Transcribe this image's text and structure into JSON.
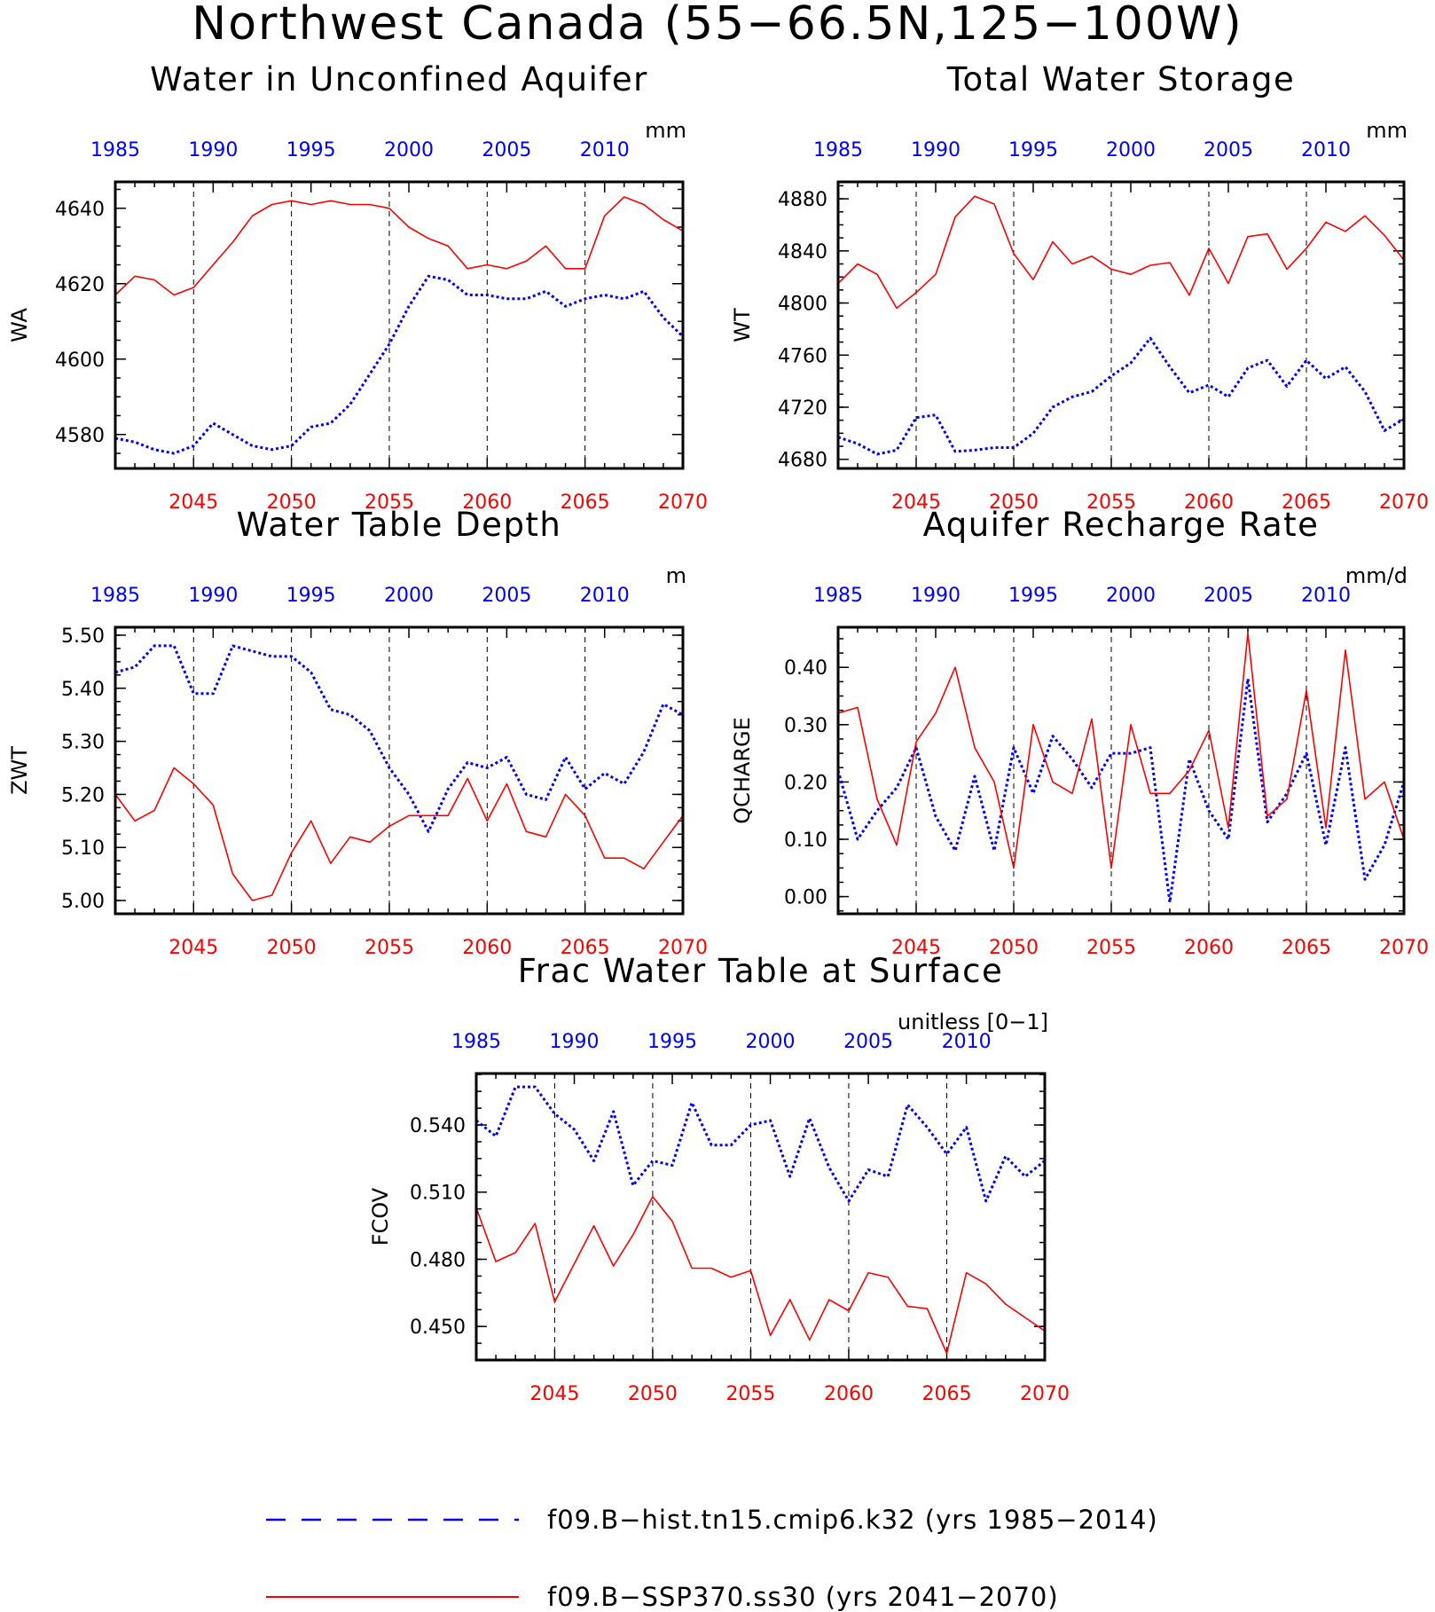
{
  "title": "Northwest Canada (55−66.5N,125−100W)",
  "colors": {
    "hist": "#0000ff",
    "ssp": "#ff0000",
    "axis": "#000000"
  },
  "legend": {
    "items": [
      {
        "label": "f09.B−hist.tn15.cmip6.k32 (yrs 1985−2014)",
        "color": "#0000ff",
        "style": "dashed"
      },
      {
        "label": "f09.B−SSP370.ss30 (yrs 2041−2070)",
        "color": "#ff0000",
        "style": "solid"
      }
    ]
  },
  "chart_data": [
    {
      "type": "line",
      "title": "Water in Unconfined Aquifer",
      "ylabel": "WA",
      "units": "mm",
      "ylim": [
        4571,
        4647
      ],
      "yticks": [
        4580,
        4600,
        4620,
        4640
      ],
      "ytick_labels": [
        "4580",
        "4600",
        "4620",
        "4640"
      ],
      "x_bottom_range": [
        2041,
        2070
      ],
      "x_bottom_ticks": [
        2045,
        2050,
        2055,
        2060,
        2065,
        2070
      ],
      "x_top_range": [
        1985,
        2014
      ],
      "x_top_ticks": [
        1985,
        1990,
        1995,
        2000,
        2005,
        2010
      ],
      "vlines": [
        2045,
        2050,
        2055,
        2060,
        2065
      ],
      "series": [
        {
          "name": "f09.B−hist.tn15.cmip6.k32 (yrs 1985−2014)",
          "axis": "top",
          "x": [
            1985,
            1986,
            1987,
            1988,
            1989,
            1990,
            1991,
            1992,
            1993,
            1994,
            1995,
            1996,
            1997,
            1998,
            1999,
            2000,
            2001,
            2002,
            2003,
            2004,
            2005,
            2006,
            2007,
            2008,
            2009,
            2010,
            2011,
            2012,
            2013,
            2014
          ],
          "values": [
            4579,
            4578,
            4576,
            4575,
            4577,
            4583,
            4580,
            4577,
            4576,
            4577,
            4582,
            4583,
            4588,
            4596,
            4604,
            4614,
            4622,
            4621,
            4617,
            4617,
            4616,
            4616,
            4618,
            4614,
            4616,
            4617,
            4616,
            4618,
            4611,
            4606
          ]
        },
        {
          "name": "f09.B−SSP370.ss30 (yrs 2041−2070)",
          "axis": "bottom",
          "x": [
            2041,
            2042,
            2043,
            2044,
            2045,
            2046,
            2047,
            2048,
            2049,
            2050,
            2051,
            2052,
            2053,
            2054,
            2055,
            2056,
            2057,
            2058,
            2059,
            2060,
            2061,
            2062,
            2063,
            2064,
            2065,
            2066,
            2067,
            2068,
            2069,
            2070
          ],
          "values": [
            4617,
            4622,
            4621,
            4617,
            4619,
            4625,
            4631,
            4638,
            4641,
            4642,
            4641,
            4642,
            4641,
            4641,
            4640,
            4635,
            4632,
            4630,
            4624,
            4625,
            4624,
            4626,
            4630,
            4624,
            4624,
            4638,
            4643,
            4641,
            4637,
            4634
          ]
        }
      ]
    },
    {
      "type": "line",
      "title": "Total Water Storage",
      "ylabel": "WT",
      "units": "mm",
      "ylim": [
        4673,
        4893
      ],
      "yticks": [
        4680,
        4720,
        4760,
        4800,
        4840,
        4880
      ],
      "ytick_labels": [
        "4680",
        "4720",
        "4760",
        "4800",
        "4840",
        "4880"
      ],
      "x_bottom_range": [
        2041,
        2070
      ],
      "x_bottom_ticks": [
        2045,
        2050,
        2055,
        2060,
        2065,
        2070
      ],
      "x_top_range": [
        1985,
        2014
      ],
      "x_top_ticks": [
        1985,
        1990,
        1995,
        2000,
        2005,
        2010
      ],
      "vlines": [
        2045,
        2050,
        2055,
        2060,
        2065
      ],
      "series": [
        {
          "name": "f09.B−hist.tn15.cmip6.k32 (yrs 1985−2014)",
          "axis": "top",
          "x": [
            1985,
            1986,
            1987,
            1988,
            1989,
            1990,
            1991,
            1992,
            1993,
            1994,
            1995,
            1996,
            1997,
            1998,
            1999,
            2000,
            2001,
            2002,
            2003,
            2004,
            2005,
            2006,
            2007,
            2008,
            2009,
            2010,
            2011,
            2012,
            2013,
            2014
          ],
          "values": [
            4697,
            4692,
            4684,
            4687,
            4712,
            4714,
            4686,
            4687,
            4689,
            4689,
            4700,
            4720,
            4728,
            4732,
            4744,
            4754,
            4773,
            4751,
            4731,
            4737,
            4728,
            4750,
            4756,
            4736,
            4756,
            4742,
            4751,
            4732,
            4702,
            4711
          ]
        },
        {
          "name": "f09.B−SSP370.ss30 (yrs 2041−2070)",
          "axis": "bottom",
          "x": [
            2041,
            2042,
            2043,
            2044,
            2045,
            2046,
            2047,
            2048,
            2049,
            2050,
            2051,
            2052,
            2053,
            2054,
            2055,
            2056,
            2057,
            2058,
            2059,
            2060,
            2061,
            2062,
            2063,
            2064,
            2065,
            2066,
            2067,
            2068,
            2069,
            2070
          ],
          "values": [
            4815,
            4830,
            4822,
            4796,
            4808,
            4822,
            4866,
            4882,
            4876,
            4838,
            4818,
            4847,
            4830,
            4836,
            4826,
            4822,
            4829,
            4831,
            4806,
            4842,
            4815,
            4851,
            4853,
            4826,
            4842,
            4862,
            4855,
            4867,
            4852,
            4833
          ]
        }
      ]
    },
    {
      "type": "line",
      "title": "Water Table Depth",
      "ylabel": "ZWT",
      "units": "m",
      "ylim": [
        4.975,
        5.515
      ],
      "yticks": [
        5.0,
        5.1,
        5.2,
        5.3,
        5.4,
        5.5
      ],
      "ytick_labels": [
        "5.00",
        "5.10",
        "5.20",
        "5.30",
        "5.40",
        "5.50"
      ],
      "x_bottom_range": [
        2041,
        2070
      ],
      "x_bottom_ticks": [
        2045,
        2050,
        2055,
        2060,
        2065,
        2070
      ],
      "x_top_range": [
        1985,
        2014
      ],
      "x_top_ticks": [
        1985,
        1990,
        1995,
        2000,
        2005,
        2010
      ],
      "vlines": [
        2045,
        2050,
        2055,
        2060,
        2065
      ],
      "series": [
        {
          "name": "f09.B−hist.tn15.cmip6.k32 (yrs 1985−2014)",
          "axis": "top",
          "x": [
            1985,
            1986,
            1987,
            1988,
            1989,
            1990,
            1991,
            1992,
            1993,
            1994,
            1995,
            1996,
            1997,
            1998,
            1999,
            2000,
            2001,
            2002,
            2003,
            2004,
            2005,
            2006,
            2007,
            2008,
            2009,
            2010,
            2011,
            2012,
            2013,
            2014
          ],
          "values": [
            5.43,
            5.44,
            5.48,
            5.48,
            5.39,
            5.39,
            5.48,
            5.47,
            5.46,
            5.46,
            5.43,
            5.36,
            5.35,
            5.32,
            5.25,
            5.2,
            5.13,
            5.21,
            5.26,
            5.25,
            5.27,
            5.2,
            5.19,
            5.27,
            5.21,
            5.24,
            5.22,
            5.28,
            5.37,
            5.35
          ]
        },
        {
          "name": "f09.B−SSP370.ss30 (yrs 2041−2070)",
          "axis": "bottom",
          "x": [
            2041,
            2042,
            2043,
            2044,
            2045,
            2046,
            2047,
            2048,
            2049,
            2050,
            2051,
            2052,
            2053,
            2054,
            2055,
            2056,
            2057,
            2058,
            2059,
            2060,
            2061,
            2062,
            2063,
            2064,
            2065,
            2066,
            2067,
            2068,
            2069,
            2070
          ],
          "values": [
            5.2,
            5.15,
            5.17,
            5.25,
            5.22,
            5.18,
            5.05,
            5.0,
            5.01,
            5.09,
            5.15,
            5.07,
            5.12,
            5.11,
            5.14,
            5.16,
            5.16,
            5.16,
            5.23,
            5.15,
            5.22,
            5.13,
            5.12,
            5.2,
            5.16,
            5.08,
            5.08,
            5.06,
            5.11,
            5.16
          ]
        }
      ]
    },
    {
      "type": "line",
      "title": "Aquifer Recharge Rate",
      "ylabel": "QCHARGE",
      "units": "mm/d",
      "ylim": [
        -0.03,
        0.47
      ],
      "yticks": [
        0.0,
        0.1,
        0.2,
        0.3,
        0.4
      ],
      "ytick_labels": [
        "0.00",
        "0.10",
        "0.20",
        "0.30",
        "0.40"
      ],
      "x_bottom_range": [
        2041,
        2070
      ],
      "x_bottom_ticks": [
        2045,
        2050,
        2055,
        2060,
        2065,
        2070
      ],
      "x_top_range": [
        1985,
        2014
      ],
      "x_top_ticks": [
        1985,
        1990,
        1995,
        2000,
        2005,
        2010
      ],
      "vlines": [
        2045,
        2050,
        2055,
        2060,
        2065
      ],
      "series": [
        {
          "name": "f09.B−hist.tn15.cmip6.k32 (yrs 1985−2014)",
          "axis": "top",
          "x": [
            1985,
            1986,
            1987,
            1988,
            1989,
            1990,
            1991,
            1992,
            1993,
            1994,
            1995,
            1996,
            1997,
            1998,
            1999,
            2000,
            2001,
            2002,
            2003,
            2004,
            2005,
            2006,
            2007,
            2008,
            2009,
            2010,
            2011,
            2012,
            2013,
            2014
          ],
          "values": [
            0.22,
            0.1,
            0.15,
            0.19,
            0.26,
            0.14,
            0.08,
            0.21,
            0.08,
            0.26,
            0.18,
            0.28,
            0.24,
            0.19,
            0.25,
            0.25,
            0.26,
            -0.01,
            0.24,
            0.15,
            0.1,
            0.38,
            0.13,
            0.18,
            0.25,
            0.09,
            0.26,
            0.03,
            0.09,
            0.2
          ]
        },
        {
          "name": "f09.B−SSP370.ss30 (yrs 2041−2070)",
          "axis": "bottom",
          "x": [
            2041,
            2042,
            2043,
            2044,
            2045,
            2046,
            2047,
            2048,
            2049,
            2050,
            2051,
            2052,
            2053,
            2054,
            2055,
            2056,
            2057,
            2058,
            2059,
            2060,
            2061,
            2062,
            2063,
            2064,
            2065,
            2066,
            2067,
            2068,
            2069,
            2070
          ],
          "values": [
            0.32,
            0.33,
            0.17,
            0.09,
            0.27,
            0.32,
            0.4,
            0.26,
            0.2,
            0.05,
            0.3,
            0.2,
            0.18,
            0.31,
            0.05,
            0.3,
            0.18,
            0.18,
            0.22,
            0.29,
            0.12,
            0.46,
            0.14,
            0.17,
            0.36,
            0.12,
            0.43,
            0.17,
            0.2,
            0.1
          ]
        }
      ]
    },
    {
      "type": "line",
      "title": "Frac Water Table at Surface",
      "ylabel": "FCOV",
      "units": "unitless [0−1]",
      "ylim": [
        0.435,
        0.563
      ],
      "yticks": [
        0.45,
        0.48,
        0.51,
        0.54
      ],
      "ytick_labels": [
        "0.450",
        "0.480",
        "0.510",
        "0.540"
      ],
      "x_bottom_range": [
        2041,
        2070
      ],
      "x_bottom_ticks": [
        2045,
        2050,
        2055,
        2060,
        2065,
        2070
      ],
      "x_top_range": [
        1985,
        2014
      ],
      "x_top_ticks": [
        1985,
        1990,
        1995,
        2000,
        2005,
        2010
      ],
      "vlines": [
        2045,
        2050,
        2055,
        2060,
        2065
      ],
      "series": [
        {
          "name": "f09.B−hist.tn15.cmip6.k32 (yrs 1985−2014)",
          "axis": "top",
          "x": [
            1985,
            1986,
            1987,
            1988,
            1989,
            1990,
            1991,
            1992,
            1993,
            1994,
            1995,
            1996,
            1997,
            1998,
            1999,
            2000,
            2001,
            2002,
            2003,
            2004,
            2005,
            2006,
            2007,
            2008,
            2009,
            2010,
            2011,
            2012,
            2013,
            2014
          ],
          "values": [
            0.542,
            0.535,
            0.557,
            0.557,
            0.545,
            0.538,
            0.524,
            0.546,
            0.513,
            0.524,
            0.522,
            0.55,
            0.531,
            0.531,
            0.54,
            0.542,
            0.517,
            0.543,
            0.521,
            0.506,
            0.52,
            0.517,
            0.549,
            0.539,
            0.527,
            0.539,
            0.506,
            0.526,
            0.517,
            0.524
          ]
        },
        {
          "name": "f09.B−SSP370.ss30 (yrs 2041−2070)",
          "axis": "bottom",
          "x": [
            2041,
            2042,
            2043,
            2044,
            2045,
            2046,
            2047,
            2048,
            2049,
            2050,
            2051,
            2052,
            2053,
            2054,
            2055,
            2056,
            2057,
            2058,
            2059,
            2060,
            2061,
            2062,
            2063,
            2064,
            2065,
            2066,
            2067,
            2068,
            2069,
            2070
          ],
          "values": [
            0.503,
            0.479,
            0.483,
            0.496,
            0.461,
            0.478,
            0.495,
            0.477,
            0.491,
            0.508,
            0.497,
            0.476,
            0.476,
            0.472,
            0.475,
            0.446,
            0.462,
            0.444,
            0.462,
            0.457,
            0.474,
            0.472,
            0.459,
            0.458,
            0.438,
            0.474,
            0.469,
            0.46,
            0.454,
            0.448
          ]
        }
      ]
    }
  ]
}
